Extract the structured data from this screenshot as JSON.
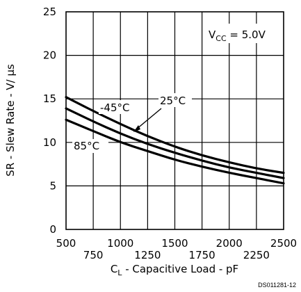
{
  "chart_data": {
    "type": "line",
    "title": "",
    "xlabel_main": "C",
    "xlabel_sub": "L",
    "xlabel_rest": " - Capacitive Load - pF",
    "ylabel": "SR - Slew Rate - V/ μs",
    "xlim": [
      500,
      2500
    ],
    "ylim": [
      0,
      25
    ],
    "x_ticks_upper": [
      "500",
      "1000",
      "1500",
      "2000",
      "2500"
    ],
    "x_ticks_lower": [
      "750",
      "1250",
      "1750",
      "2250"
    ],
    "y_ticks": [
      "0",
      "5",
      "10",
      "15",
      "20",
      "25"
    ],
    "grid": true,
    "annotation": {
      "vcc_main": "V",
      "vcc_sub": "CC",
      "vcc_rest": " = 5.0V"
    },
    "series": [
      {
        "name": "-45°C",
        "x": [
          500,
          750,
          1000,
          1250,
          1500,
          1750,
          2000,
          2250,
          2500
        ],
        "y": [
          15.2,
          13.6,
          12.1,
          10.7,
          9.5,
          8.5,
          7.7,
          7.0,
          6.5
        ]
      },
      {
        "name": "25°C",
        "x": [
          500,
          750,
          1000,
          1250,
          1500,
          1750,
          2000,
          2250,
          2500
        ],
        "y": [
          13.9,
          12.4,
          11.0,
          9.8,
          8.8,
          7.9,
          7.1,
          6.5,
          5.9
        ]
      },
      {
        "name": "85°C",
        "x": [
          500,
          750,
          1000,
          1250,
          1500,
          1750,
          2000,
          2250,
          2500
        ],
        "y": [
          12.6,
          11.3,
          10.0,
          9.0,
          8.0,
          7.2,
          6.5,
          5.9,
          5.3
        ]
      }
    ],
    "footnote": "DS011281-12"
  }
}
